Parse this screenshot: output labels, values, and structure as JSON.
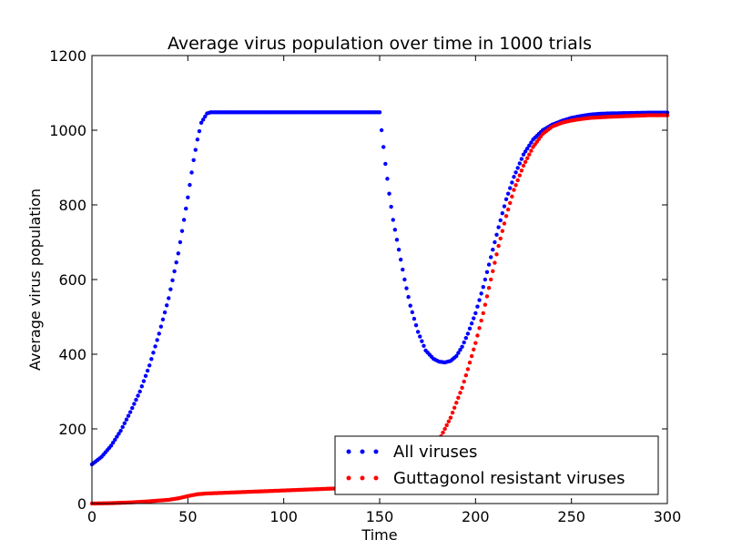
{
  "chart_data": {
    "type": "scatter",
    "title": "Average virus population over time in 1000 trials",
    "xlabel": "Time",
    "ylabel": "Average virus population",
    "xlim": [
      0,
      300
    ],
    "ylim": [
      0,
      1200
    ],
    "xticks": [
      0,
      50,
      100,
      150,
      200,
      250,
      300
    ],
    "yticks": [
      0,
      200,
      400,
      600,
      800,
      1000,
      1200
    ],
    "grid": false,
    "legend_position": "lower-right",
    "series": [
      {
        "name": "All viruses",
        "color": "#0000ff",
        "marker": "dot",
        "points": [
          [
            0,
            105
          ],
          [
            5,
            125
          ],
          [
            10,
            155
          ],
          [
            15,
            195
          ],
          [
            20,
            245
          ],
          [
            25,
            300
          ],
          [
            30,
            370
          ],
          [
            35,
            455
          ],
          [
            40,
            550
          ],
          [
            45,
            670
          ],
          [
            50,
            820
          ],
          [
            53,
            920
          ],
          [
            55,
            975
          ],
          [
            57,
            1020
          ],
          [
            60,
            1045
          ],
          [
            62,
            1048
          ],
          [
            70,
            1048
          ],
          [
            80,
            1048
          ],
          [
            90,
            1048
          ],
          [
            100,
            1048
          ],
          [
            110,
            1048
          ],
          [
            120,
            1048
          ],
          [
            130,
            1048
          ],
          [
            140,
            1048
          ],
          [
            150,
            1048
          ],
          [
            151,
            1000
          ],
          [
            153,
            910
          ],
          [
            155,
            830
          ],
          [
            157,
            760
          ],
          [
            160,
            680
          ],
          [
            163,
            600
          ],
          [
            166,
            530
          ],
          [
            170,
            460
          ],
          [
            174,
            410
          ],
          [
            178,
            388
          ],
          [
            181,
            380
          ],
          [
            184,
            378
          ],
          [
            187,
            382
          ],
          [
            190,
            395
          ],
          [
            193,
            420
          ],
          [
            196,
            455
          ],
          [
            200,
            510
          ],
          [
            204,
            580
          ],
          [
            208,
            660
          ],
          [
            212,
            740
          ],
          [
            216,
            815
          ],
          [
            220,
            875
          ],
          [
            225,
            935
          ],
          [
            230,
            975
          ],
          [
            235,
            1000
          ],
          [
            240,
            1015
          ],
          [
            245,
            1025
          ],
          [
            250,
            1033
          ],
          [
            255,
            1038
          ],
          [
            260,
            1042
          ],
          [
            265,
            1044
          ],
          [
            270,
            1045
          ],
          [
            280,
            1046
          ],
          [
            290,
            1047
          ],
          [
            300,
            1047
          ]
        ]
      },
      {
        "name": "Guttagonol resistant viruses",
        "color": "#ff0000",
        "marker": "dot",
        "points": [
          [
            0,
            0
          ],
          [
            10,
            1
          ],
          [
            20,
            3
          ],
          [
            30,
            6
          ],
          [
            40,
            10
          ],
          [
            45,
            14
          ],
          [
            50,
            20
          ],
          [
            55,
            25
          ],
          [
            60,
            27
          ],
          [
            70,
            29
          ],
          [
            80,
            31
          ],
          [
            90,
            33
          ],
          [
            100,
            35
          ],
          [
            110,
            37
          ],
          [
            120,
            39
          ],
          [
            130,
            41
          ],
          [
            140,
            43
          ],
          [
            150,
            46
          ],
          [
            155,
            48
          ],
          [
            160,
            55
          ],
          [
            165,
            70
          ],
          [
            170,
            90
          ],
          [
            175,
            120
          ],
          [
            178,
            145
          ],
          [
            181,
            170
          ],
          [
            184,
            200
          ],
          [
            187,
            230
          ],
          [
            190,
            270
          ],
          [
            193,
            310
          ],
          [
            196,
            360
          ],
          [
            200,
            430
          ],
          [
            204,
            510
          ],
          [
            208,
            600
          ],
          [
            212,
            690
          ],
          [
            216,
            770
          ],
          [
            220,
            840
          ],
          [
            225,
            905
          ],
          [
            230,
            955
          ],
          [
            235,
            990
          ],
          [
            240,
            1010
          ],
          [
            245,
            1020
          ],
          [
            250,
            1026
          ],
          [
            255,
            1030
          ],
          [
            260,
            1033
          ],
          [
            270,
            1036
          ],
          [
            280,
            1038
          ],
          [
            290,
            1040
          ],
          [
            300,
            1040
          ]
        ]
      }
    ]
  }
}
